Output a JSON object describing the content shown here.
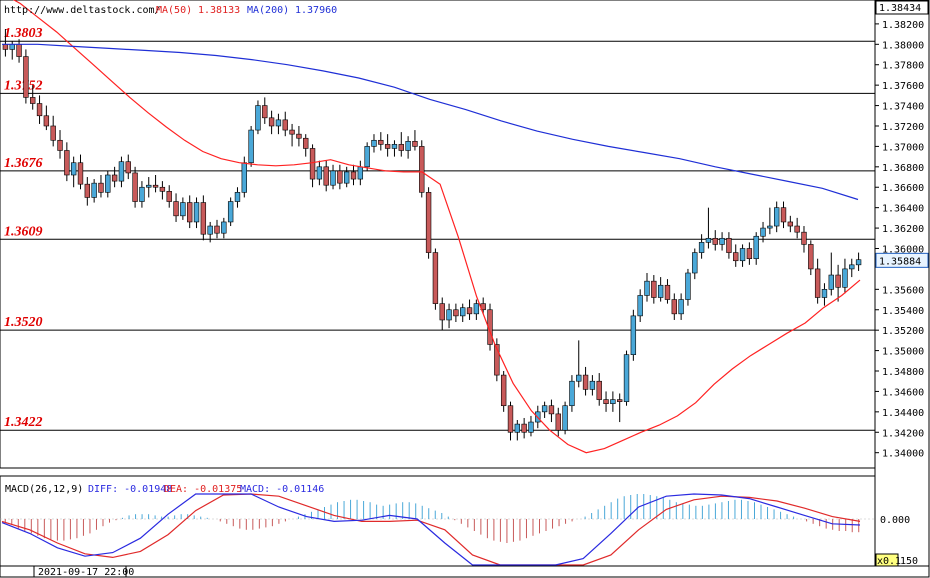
{
  "header": {
    "url": "http://www.deltastock.com/",
    "ma50_label": "MA(50)",
    "ma50_value": "1.38133",
    "ma200_label": "MA(200)",
    "ma200_value": "1.37960"
  },
  "macd_header": {
    "title": "MACD(26,12,9)",
    "diff": "DIFF: -0.01948",
    "dea": "DEA: -0.01375",
    "macd": "MACD: -0.01146"
  },
  "price_axis": {
    "top_value": "1.38434",
    "current_value": "1.35884"
  },
  "macd_axis": {
    "zero_label": "0.000",
    "multiplier": "x0.1",
    "bottom_label": "150"
  },
  "footer": {
    "date": "2021-09-17 22:00"
  },
  "colors": {
    "bull": "#4aa8d8",
    "bear": "#c85a5a",
    "ma50": "#ff2222",
    "ma200": "#1f2fd6",
    "level_text": "#e00000",
    "diff_line": "#2a2ae0",
    "dea_line": "#e02a2a"
  },
  "chart_data": [
    {
      "type": "candlestick",
      "title": "",
      "ylim": [
        1.3385,
        1.38434
      ],
      "ticks": [
        "1.38200",
        "1.38000",
        "1.37800",
        "1.37600",
        "1.37400",
        "1.37200",
        "1.37000",
        "1.36800",
        "1.36600",
        "1.36400",
        "1.36200",
        "1.36000",
        "1.35600",
        "1.35400",
        "1.35200",
        "1.35000",
        "1.34800",
        "1.34600",
        "1.34400",
        "1.34200",
        "1.34000"
      ],
      "levels": [
        "1.3803",
        "1.3752",
        "1.3676",
        "1.3609",
        "1.3520",
        "1.3422"
      ],
      "candles": [
        [
          1.38,
          1.3815,
          1.3788,
          1.3795
        ],
        [
          1.3795,
          1.3803,
          1.3785,
          1.38
        ],
        [
          1.38,
          1.3805,
          1.3782,
          1.3788
        ],
        [
          1.3788,
          1.3795,
          1.3742,
          1.3748
        ],
        [
          1.3748,
          1.376,
          1.3736,
          1.3742
        ],
        [
          1.3742,
          1.375,
          1.3722,
          1.373
        ],
        [
          1.373,
          1.374,
          1.3716,
          1.372
        ],
        [
          1.372,
          1.373,
          1.37,
          1.3706
        ],
        [
          1.3706,
          1.3716,
          1.3688,
          1.3696
        ],
        [
          1.3696,
          1.3704,
          1.3666,
          1.3672
        ],
        [
          1.3672,
          1.369,
          1.366,
          1.3684
        ],
        [
          1.3684,
          1.3692,
          1.3658,
          1.3663
        ],
        [
          1.3663,
          1.367,
          1.3642,
          1.365
        ],
        [
          1.365,
          1.3668,
          1.3645,
          1.3664
        ],
        [
          1.3664,
          1.3672,
          1.365,
          1.3655
        ],
        [
          1.3655,
          1.3676,
          1.365,
          1.3672
        ],
        [
          1.3672,
          1.368,
          1.366,
          1.3666
        ],
        [
          1.3666,
          1.369,
          1.366,
          1.3685
        ],
        [
          1.3685,
          1.3692,
          1.3668,
          1.3674
        ],
        [
          1.3674,
          1.368,
          1.364,
          1.3646
        ],
        [
          1.3646,
          1.3666,
          1.364,
          1.366
        ],
        [
          1.366,
          1.367,
          1.365,
          1.3662
        ],
        [
          1.3662,
          1.3672,
          1.3655,
          1.366
        ],
        [
          1.366,
          1.3666,
          1.3648,
          1.3656
        ],
        [
          1.3656,
          1.3662,
          1.364,
          1.3646
        ],
        [
          1.3646,
          1.3654,
          1.3626,
          1.3632
        ],
        [
          1.3632,
          1.365,
          1.3628,
          1.3645
        ],
        [
          1.3645,
          1.3652,
          1.362,
          1.3626
        ],
        [
          1.3626,
          1.365,
          1.362,
          1.3645
        ],
        [
          1.3645,
          1.3652,
          1.3608,
          1.3614
        ],
        [
          1.3614,
          1.3626,
          1.3606,
          1.3622
        ],
        [
          1.3622,
          1.3628,
          1.361,
          1.3615
        ],
        [
          1.3615,
          1.363,
          1.361,
          1.3626
        ],
        [
          1.3626,
          1.365,
          1.3622,
          1.3646
        ],
        [
          1.3646,
          1.366,
          1.364,
          1.3655
        ],
        [
          1.3655,
          1.369,
          1.365,
          1.3684
        ],
        [
          1.3684,
          1.372,
          1.368,
          1.3716
        ],
        [
          1.3716,
          1.3745,
          1.3712,
          1.374
        ],
        [
          1.374,
          1.3748,
          1.3722,
          1.3728
        ],
        [
          1.3728,
          1.3735,
          1.3712,
          1.372
        ],
        [
          1.372,
          1.3732,
          1.3712,
          1.3726
        ],
        [
          1.3726,
          1.3734,
          1.371,
          1.3716
        ],
        [
          1.3716,
          1.3722,
          1.37,
          1.3712
        ],
        [
          1.3712,
          1.372,
          1.37,
          1.3708
        ],
        [
          1.3708,
          1.3712,
          1.369,
          1.3698
        ],
        [
          1.3698,
          1.3702,
          1.366,
          1.3668
        ],
        [
          1.3668,
          1.3686,
          1.3662,
          1.368
        ],
        [
          1.368,
          1.3686,
          1.3656,
          1.3662
        ],
        [
          1.3662,
          1.3682,
          1.3658,
          1.3676
        ],
        [
          1.3676,
          1.3682,
          1.3658,
          1.3664
        ],
        [
          1.3664,
          1.368,
          1.366,
          1.3675
        ],
        [
          1.3675,
          1.3682,
          1.3662,
          1.3668
        ],
        [
          1.3668,
          1.3686,
          1.3662,
          1.368
        ],
        [
          1.368,
          1.3704,
          1.3676,
          1.37
        ],
        [
          1.37,
          1.3712,
          1.3694,
          1.3706
        ],
        [
          1.3706,
          1.3714,
          1.3696,
          1.3702
        ],
        [
          1.3702,
          1.3712,
          1.369,
          1.3698
        ],
        [
          1.3698,
          1.3706,
          1.369,
          1.3702
        ],
        [
          1.3702,
          1.3714,
          1.369,
          1.3696
        ],
        [
          1.3696,
          1.371,
          1.3688,
          1.3705
        ],
        [
          1.3705,
          1.3716,
          1.3696,
          1.37
        ],
        [
          1.37,
          1.3706,
          1.365,
          1.3655
        ],
        [
          1.3655,
          1.366,
          1.359,
          1.3596
        ],
        [
          1.3596,
          1.36,
          1.354,
          1.3546
        ],
        [
          1.3546,
          1.3552,
          1.352,
          1.353
        ],
        [
          1.353,
          1.3546,
          1.3522,
          1.354
        ],
        [
          1.354,
          1.3546,
          1.3528,
          1.3534
        ],
        [
          1.3534,
          1.3546,
          1.3528,
          1.3542
        ],
        [
          1.3542,
          1.355,
          1.353,
          1.3536
        ],
        [
          1.3536,
          1.355,
          1.353,
          1.3546
        ],
        [
          1.3546,
          1.3552,
          1.3536,
          1.354
        ],
        [
          1.354,
          1.3546,
          1.35,
          1.3506
        ],
        [
          1.3506,
          1.3512,
          1.347,
          1.3476
        ],
        [
          1.3476,
          1.348,
          1.344,
          1.3446
        ],
        [
          1.3446,
          1.345,
          1.3412,
          1.342
        ],
        [
          1.342,
          1.3432,
          1.3412,
          1.3428
        ],
        [
          1.3428,
          1.3434,
          1.3414,
          1.342
        ],
        [
          1.342,
          1.3436,
          1.3416,
          1.343
        ],
        [
          1.343,
          1.3446,
          1.3424,
          1.344
        ],
        [
          1.344,
          1.345,
          1.3434,
          1.3446
        ],
        [
          1.3446,
          1.3452,
          1.343,
          1.3438
        ],
        [
          1.3438,
          1.3444,
          1.3416,
          1.3422
        ],
        [
          1.3422,
          1.345,
          1.3418,
          1.3446
        ],
        [
          1.3446,
          1.3476,
          1.344,
          1.347
        ],
        [
          1.347,
          1.351,
          1.3464,
          1.3476
        ],
        [
          1.3476,
          1.3484,
          1.3456,
          1.3462
        ],
        [
          1.3462,
          1.3476,
          1.3456,
          1.347
        ],
        [
          1.347,
          1.3478,
          1.3446,
          1.3452
        ],
        [
          1.3452,
          1.346,
          1.344,
          1.3448
        ],
        [
          1.3448,
          1.346,
          1.344,
          1.3452
        ],
        [
          1.3452,
          1.3458,
          1.343,
          1.345
        ],
        [
          1.345,
          1.35,
          1.3446,
          1.3496
        ],
        [
          1.3496,
          1.354,
          1.349,
          1.3534
        ],
        [
          1.3534,
          1.356,
          1.3528,
          1.3554
        ],
        [
          1.3554,
          1.3576,
          1.3548,
          1.3568
        ],
        [
          1.3568,
          1.3574,
          1.3546,
          1.3552
        ],
        [
          1.3552,
          1.3572,
          1.3548,
          1.3564
        ],
        [
          1.3564,
          1.357,
          1.3546,
          1.355
        ],
        [
          1.355,
          1.3556,
          1.353,
          1.3536
        ],
        [
          1.3536,
          1.3556,
          1.353,
          1.355
        ],
        [
          1.355,
          1.358,
          1.3544,
          1.3576
        ],
        [
          1.3576,
          1.36,
          1.357,
          1.3596
        ],
        [
          1.3596,
          1.3614,
          1.359,
          1.3606
        ],
        [
          1.3606,
          1.364,
          1.36,
          1.361
        ],
        [
          1.361,
          1.3618,
          1.3598,
          1.3604
        ],
        [
          1.3604,
          1.3616,
          1.3598,
          1.361
        ],
        [
          1.361,
          1.3616,
          1.359,
          1.3596
        ],
        [
          1.3596,
          1.3604,
          1.3582,
          1.3588
        ],
        [
          1.3588,
          1.3604,
          1.3582,
          1.36
        ],
        [
          1.36,
          1.3606,
          1.3584,
          1.359
        ],
        [
          1.359,
          1.3616,
          1.3584,
          1.3612
        ],
        [
          1.3612,
          1.3626,
          1.3606,
          1.362
        ],
        [
          1.362,
          1.364,
          1.3614,
          1.3622
        ],
        [
          1.3622,
          1.3646,
          1.3616,
          1.364
        ],
        [
          1.364,
          1.3646,
          1.362,
          1.3626
        ],
        [
          1.3626,
          1.3632,
          1.3616,
          1.3622
        ],
        [
          1.3622,
          1.363,
          1.361,
          1.3616
        ],
        [
          1.3616,
          1.3622,
          1.3596,
          1.3604
        ],
        [
          1.3604,
          1.3608,
          1.3574,
          1.358
        ],
        [
          1.358,
          1.359,
          1.3546,
          1.3552
        ],
        [
          1.3552,
          1.3566,
          1.3544,
          1.356
        ],
        [
          1.356,
          1.3596,
          1.3554,
          1.3574
        ],
        [
          1.3574,
          1.3584,
          1.3548,
          1.3562
        ],
        [
          1.3562,
          1.359,
          1.3556,
          1.358
        ],
        [
          1.358,
          1.359,
          1.3572,
          1.3584
        ],
        [
          1.3584,
          1.3596,
          1.3578,
          1.3589
        ]
      ],
      "ma50": [
        1.385,
        1.384,
        1.3826,
        1.3812,
        1.3796,
        1.378,
        1.3764,
        1.3748,
        1.3733,
        1.3719,
        1.3706,
        1.3695,
        1.3688,
        1.3684,
        1.3682,
        1.3681,
        1.3682,
        1.3684,
        1.3687,
        1.3682,
        1.3679,
        1.3676,
        1.3675,
        1.3675,
        1.3663,
        1.3611,
        1.3553,
        1.3506,
        1.3468,
        1.3441,
        1.3422,
        1.3408,
        1.34,
        1.3404,
        1.3412,
        1.342,
        1.3427,
        1.3436,
        1.3449,
        1.3467,
        1.3482,
        1.3495,
        1.3506,
        1.3517,
        1.3527,
        1.3542,
        1.3554,
        1.3569
      ],
      "ma200": [
        1.38,
        1.38,
        1.3798,
        1.3796,
        1.3794,
        1.3792,
        1.3789,
        1.3785,
        1.378,
        1.3774,
        1.3767,
        1.3758,
        1.3746,
        1.3736,
        1.3725,
        1.3715,
        1.3707,
        1.37,
        1.3694,
        1.3688,
        1.368,
        1.3673,
        1.3666,
        1.3659,
        1.3648
      ]
    },
    {
      "type": "macd",
      "title": "MACD(26,12,9)",
      "zero": 0,
      "hist": [
        -0.003,
        -0.005,
        -0.008,
        -0.01,
        -0.012,
        -0.014,
        -0.016,
        -0.017,
        -0.018,
        -0.018,
        -0.017,
        -0.016,
        -0.014,
        -0.012,
        -0.009,
        -0.006,
        -0.003,
        -0.001,
        0.001,
        0.003,
        0.004,
        0.004,
        0.004,
        0.003,
        0.002,
        0.002,
        0.003,
        0.004,
        0.004,
        0.003,
        0.002,
        0.001,
        0.0,
        -0.002,
        -0.004,
        -0.006,
        -0.008,
        -0.009,
        -0.009,
        -0.008,
        -0.007,
        -0.006,
        -0.004,
        -0.002,
        0.0,
        0.002,
        0.004,
        0.006,
        0.008,
        0.01,
        0.012,
        0.014,
        0.015,
        0.016,
        0.016,
        0.015,
        0.014,
        0.012,
        0.011,
        0.012,
        0.013,
        0.014,
        0.014,
        0.013,
        0.011,
        0.009,
        0.007,
        0.005,
        0.002,
        -0.001,
        -0.004,
        -0.007,
        -0.01,
        -0.013,
        -0.016,
        -0.018,
        -0.019,
        -0.02,
        -0.019,
        -0.018,
        -0.016,
        -0.014,
        -0.012,
        -0.01,
        -0.008,
        -0.006,
        -0.004,
        -0.002,
        0.0,
        0.002,
        0.005,
        0.008,
        0.011,
        0.014,
        0.017,
        0.019,
        0.02,
        0.021,
        0.021,
        0.02,
        0.019,
        0.018,
        0.016,
        0.014,
        0.013,
        0.012,
        0.011,
        0.011,
        0.012,
        0.013,
        0.014,
        0.015,
        0.016,
        0.016,
        0.015,
        0.014,
        0.012,
        0.01,
        0.008,
        0.006,
        0.004,
        0.002,
        0.0,
        -0.002,
        -0.004,
        -0.006,
        -0.008,
        -0.009,
        -0.01,
        -0.01,
        -0.011,
        -0.011
      ],
      "diff": [
        -0.003,
        -0.012,
        -0.024,
        -0.031,
        -0.028,
        -0.016,
        0.004,
        0.023,
        0.027,
        0.021,
        0.01,
        0.002,
        -0.002,
        -0.001,
        0.003,
        0.0,
        -0.02,
        -0.046,
        -0.062,
        -0.068,
        -0.055,
        -0.033,
        -0.012,
        0.01,
        0.019,
        0.021,
        0.02,
        0.017,
        0.01,
        0.003,
        -0.004,
        -0.005
      ],
      "dea": [
        -0.002,
        -0.009,
        -0.02,
        -0.029,
        -0.032,
        -0.027,
        -0.013,
        0.007,
        0.02,
        0.024,
        0.019,
        0.011,
        0.003,
        -0.002,
        -0.002,
        -0.001,
        -0.009,
        -0.03,
        -0.051,
        -0.062,
        -0.063,
        -0.05,
        -0.03,
        -0.009,
        0.008,
        0.016,
        0.019,
        0.018,
        0.015,
        0.009,
        0.002,
        -0.002
      ]
    }
  ]
}
